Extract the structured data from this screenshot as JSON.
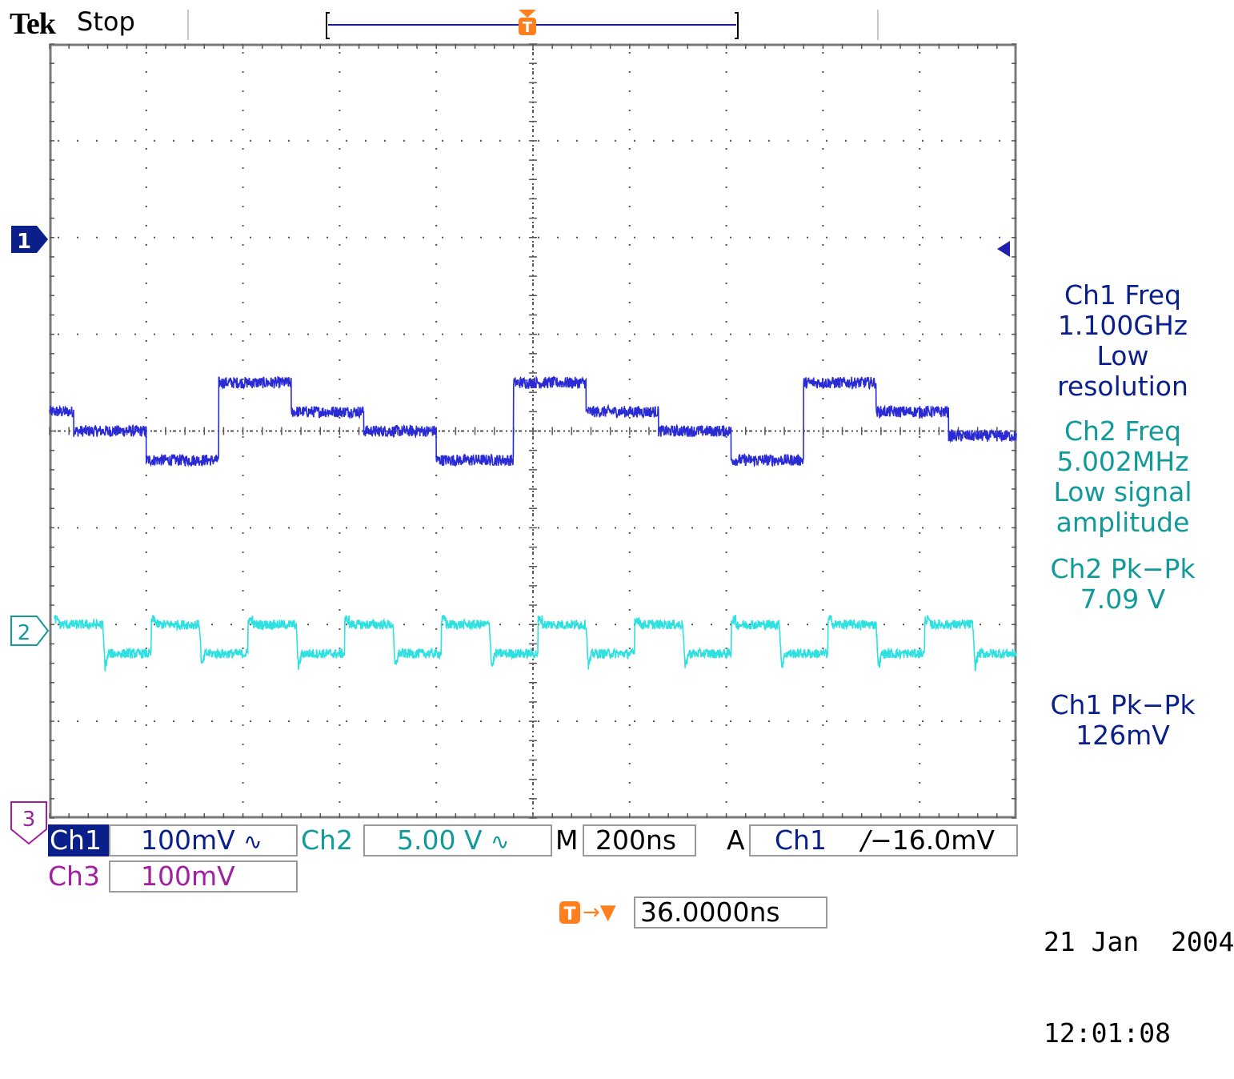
{
  "header": {
    "brand": "Tek",
    "acquisition_state": "Stop"
  },
  "colors": {
    "ch1": "#2b2bd6",
    "ch2": "#2fe0e0",
    "ch3": "#a020a0",
    "trigger": "#ff7f1e",
    "label_navy": "#0a1f8a",
    "label_teal": "#129a9a"
  },
  "markers": {
    "ch1": "1",
    "ch2": "2",
    "ch3": "3",
    "trigger": "T"
  },
  "measurements": [
    {
      "lines": [
        "Ch1 Freq",
        "1.100GHz",
        "Low",
        "resolution"
      ],
      "color": "#0a1f8a"
    },
    {
      "lines": [
        "Ch2 Freq",
        "5.002MHz",
        "Low signal",
        "amplitude"
      ],
      "color": "#129a9a"
    },
    {
      "lines": [
        "Ch2 Pk−Pk",
        "7.09 V"
      ],
      "color": "#129a9a"
    },
    {
      "lines": [
        "Ch1 Pk−Pk",
        "126mV"
      ],
      "color": "#0a1f8a"
    }
  ],
  "channels": {
    "ch1": {
      "label": "Ch1",
      "scale": "100mV",
      "coupling_icon": "ac-coupling-icon",
      "coupling_glyph": "∿"
    },
    "ch2": {
      "label": "Ch2",
      "scale": "5.00 V",
      "coupling_icon": "ac-coupling-icon",
      "coupling_glyph": "∿"
    },
    "ch3": {
      "label": "Ch3",
      "scale": "100mV"
    }
  },
  "timebase": {
    "label": "M",
    "value": "200ns"
  },
  "trigger": {
    "mode": "A",
    "source": "Ch1",
    "slope_icon": "rising-edge-icon",
    "slope_glyph": "∕",
    "level": "−16.0mV",
    "position_arrow": "→▼",
    "position": "36.0000ns"
  },
  "datetime": {
    "date": "21 Jan  2004",
    "time": "12:01:08"
  },
  "chart_data": {
    "type": "line",
    "grid": true,
    "divisions": {
      "x": 10,
      "y": 8
    },
    "series": [
      {
        "name": "Ch1",
        "color": "#2b2bd6",
        "segments": [
          [
            -5.0,
            0.2
          ],
          [
            -4.75,
            0.0
          ],
          [
            -4.0,
            -0.3
          ],
          [
            -3.25,
            0.5
          ],
          [
            -2.5,
            0.2
          ],
          [
            -1.75,
            0.0
          ],
          [
            -1.0,
            -0.3
          ],
          [
            -0.2,
            0.5
          ],
          [
            0.55,
            0.2
          ],
          [
            1.3,
            0.0
          ],
          [
            2.05,
            -0.3
          ],
          [
            2.8,
            0.5
          ],
          [
            3.55,
            0.2
          ],
          [
            4.3,
            -0.05
          ]
        ],
        "end_x": 5.0,
        "noise": 0.06
      },
      {
        "name": "Ch2",
        "color": "#2fe0e0",
        "period_div": 1.0,
        "high_div": -2.0,
        "low_div": -2.3,
        "high_frac": 0.5,
        "noise": 0.05
      }
    ]
  }
}
